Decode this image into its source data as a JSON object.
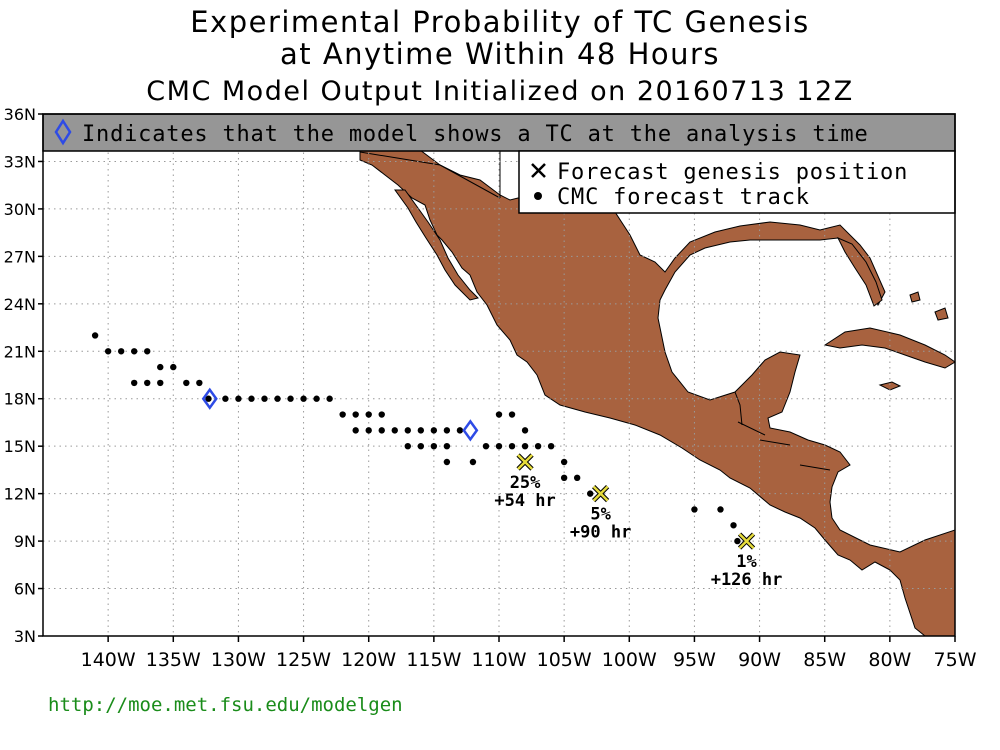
{
  "title": {
    "line1": "Experimental Probability of TC Genesis",
    "line2": "at Anytime Within 48 Hours",
    "line3": "CMC Model Output Initialized on 20160713 12Z"
  },
  "banner": {
    "text": "Indicates that the model shows a TC at the analysis time"
  },
  "legend": {
    "genesis_label": "Forecast genesis position",
    "track_label": "CMC forecast track"
  },
  "axes": {
    "lat_labels": [
      "36N",
      "33N",
      "30N",
      "27N",
      "24N",
      "21N",
      "18N",
      "15N",
      "12N",
      "9N",
      "6N",
      "3N"
    ],
    "lat_values": [
      36,
      33,
      30,
      27,
      24,
      21,
      18,
      15,
      12,
      9,
      6,
      3
    ],
    "lon_labels": [
      "140W",
      "135W",
      "130W",
      "125W",
      "120W",
      "115W",
      "110W",
      "105W",
      "100W",
      "95W",
      "90W",
      "85W",
      "80W",
      "75W"
    ],
    "lon_values": [
      -140,
      -135,
      -130,
      -125,
      -120,
      -115,
      -110,
      -105,
      -100,
      -95,
      -90,
      -85,
      -80,
      -75
    ],
    "lon_range": [
      -145,
      -75
    ],
    "lat_range": [
      3,
      36
    ],
    "grid": "dotted"
  },
  "colors": {
    "land": "#A8623F",
    "banner_bg": "#969696",
    "diamond": "#2E4BE6",
    "genesis_marker": "#E6DC3C",
    "footer_text": "#1A8C1A"
  },
  "analysis_positions": [
    {
      "lon": -132.2,
      "lat": 18
    },
    {
      "lon": -112.2,
      "lat": 16
    }
  ],
  "genesis": [
    {
      "lon": -108,
      "lat": 14,
      "prob": "25%",
      "time": "+54 hr"
    },
    {
      "lon": -102.2,
      "lat": 12,
      "prob": "5%",
      "time": "+90 hr"
    },
    {
      "lon": -91,
      "lat": 9,
      "prob": "1%",
      "time": "+126 hr"
    }
  ],
  "track_points": [
    [
      -141,
      22
    ],
    [
      -140,
      21
    ],
    [
      -139,
      21
    ],
    [
      -138,
      21
    ],
    [
      -137,
      21
    ],
    [
      -136,
      20
    ],
    [
      -135,
      20
    ],
    [
      -138,
      19
    ],
    [
      -137,
      19
    ],
    [
      -136,
      19
    ],
    [
      -134,
      19
    ],
    [
      -133,
      19
    ],
    [
      -132.3,
      18
    ],
    [
      -131,
      18
    ],
    [
      -130,
      18
    ],
    [
      -129,
      18
    ],
    [
      -128,
      18
    ],
    [
      -127,
      18
    ],
    [
      -126,
      18
    ],
    [
      -125,
      18
    ],
    [
      -124,
      18
    ],
    [
      -123,
      18
    ],
    [
      -122,
      17
    ],
    [
      -121,
      17
    ],
    [
      -120,
      17
    ],
    [
      -119,
      17
    ],
    [
      -121,
      16
    ],
    [
      -120,
      16
    ],
    [
      -119,
      16
    ],
    [
      -118,
      16
    ],
    [
      -117,
      16
    ],
    [
      -116,
      16
    ],
    [
      -115,
      16
    ],
    [
      -114,
      16
    ],
    [
      -113,
      16
    ],
    [
      -117,
      15
    ],
    [
      -116,
      15
    ],
    [
      -115,
      15
    ],
    [
      -114,
      15
    ],
    [
      -111,
      15
    ],
    [
      -110,
      15
    ],
    [
      -109,
      15
    ],
    [
      -108,
      15
    ],
    [
      -107,
      15
    ],
    [
      -106,
      15
    ],
    [
      -114,
      14
    ],
    [
      -112,
      14
    ],
    [
      -110,
      17
    ],
    [
      -109,
      17
    ],
    [
      -108,
      16
    ],
    [
      -105,
      14
    ],
    [
      -104,
      13
    ],
    [
      -105,
      13
    ],
    [
      -103,
      12
    ],
    [
      -95,
      11
    ],
    [
      -93,
      11
    ],
    [
      -92,
      10
    ],
    [
      -91.7,
      9
    ]
  ],
  "footer": {
    "url": "http://moe.met.fsu.edu/modelgen"
  }
}
